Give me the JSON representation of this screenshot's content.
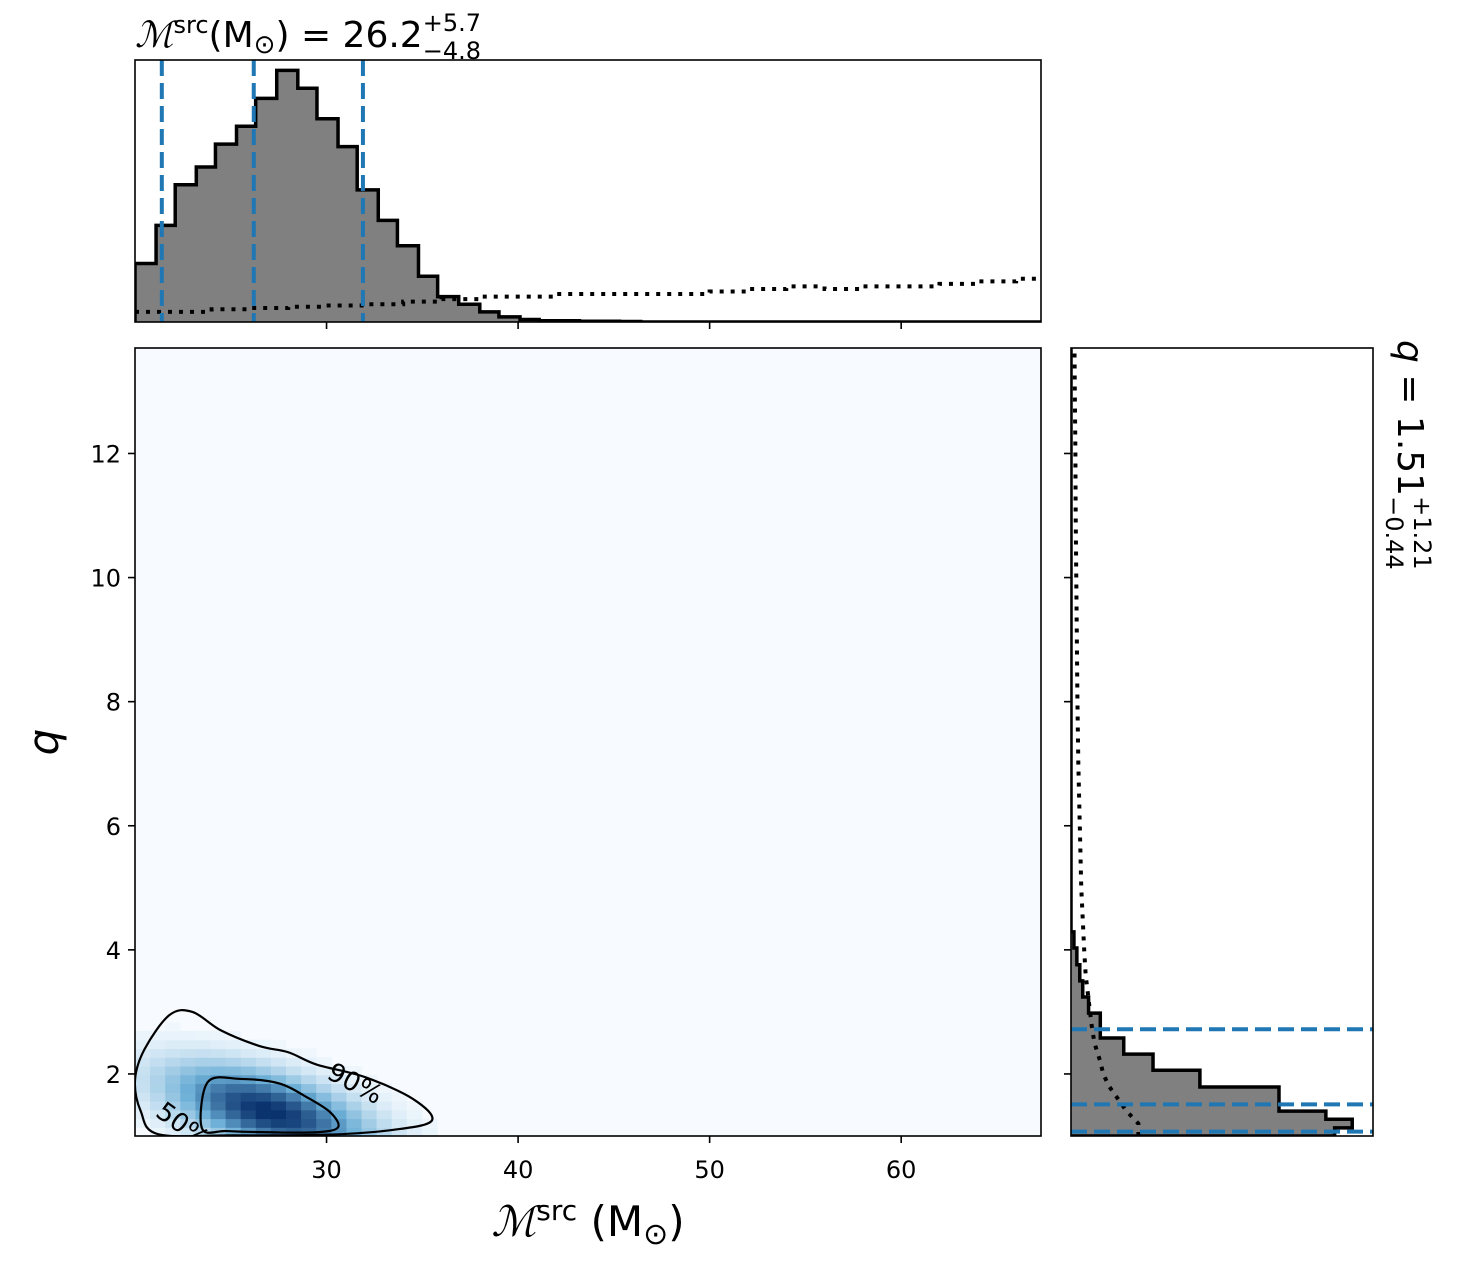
{
  "chart_data": {
    "type": "corner",
    "colors": {
      "hist_fill": "#808080",
      "hist_edge": "#000000",
      "quantile_line": "#1f77b4",
      "prior_line": "#000000",
      "density_cmap_low": "#f7fbff",
      "density_cmap_high": "#08306b"
    },
    "parameters": {
      "mchirp": {
        "label_symbol": "ℳ",
        "label_sup": "src",
        "label_unit": " (M",
        "label_unit_sub": "⊙",
        "label_unit_close": ")",
        "range": [
          20,
          67.3
        ],
        "ticks": [
          30,
          40,
          50,
          60
        ],
        "tick_labels": [
          "30",
          "40",
          "50",
          "60"
        ],
        "median": 26.2,
        "plus": "+5.7",
        "minus": "−4.8",
        "quantiles": [
          21.4,
          26.2,
          31.9
        ],
        "title_prefix": "(M",
        "title_eq": ") = 26.2"
      },
      "q": {
        "label_symbol": "q",
        "range": [
          1,
          13.7
        ],
        "ticks": [
          2,
          4,
          6,
          8,
          10,
          12
        ],
        "tick_labels": [
          "2",
          "4",
          "6",
          "8",
          "10",
          "12"
        ],
        "median": 1.51,
        "plus": "+1.21",
        "minus": "−0.44",
        "quantiles": [
          1.07,
          1.51,
          2.72
        ],
        "title_eq": " = 1.51"
      }
    },
    "mchirp_hist": {
      "bin_edges": [
        20,
        21.1,
        22.1,
        23.2,
        24.2,
        25.3,
        26.3,
        27.4,
        28.5,
        29.5,
        30.6,
        31.6,
        32.7,
        33.7,
        34.8,
        35.8,
        36.9,
        38.0,
        39.0,
        40.1,
        41.1,
        42.2,
        43.2,
        44.3,
        45.3,
        46.4
      ],
      "density": [
        0.23,
        0.38,
        0.54,
        0.61,
        0.7,
        0.77,
        0.88,
        0.99,
        0.92,
        0.8,
        0.69,
        0.52,
        0.4,
        0.3,
        0.18,
        0.1,
        0.07,
        0.04,
        0.02,
        0.01,
        0.005,
        0.005,
        0.003,
        0.003,
        0.002
      ],
      "prior": [
        [
          20,
          0.04
        ],
        [
          22,
          0.04
        ],
        [
          24,
          0.05
        ],
        [
          26,
          0.055
        ],
        [
          28,
          0.06
        ],
        [
          30,
          0.065
        ],
        [
          32,
          0.07
        ],
        [
          34,
          0.08
        ],
        [
          36,
          0.09
        ],
        [
          38,
          0.1
        ],
        [
          40,
          0.1
        ],
        [
          42,
          0.11
        ],
        [
          44,
          0.11
        ],
        [
          46,
          0.11
        ],
        [
          48,
          0.11
        ],
        [
          50,
          0.12
        ],
        [
          52,
          0.13
        ],
        [
          54,
          0.14
        ],
        [
          56,
          0.13
        ],
        [
          58,
          0.14
        ],
        [
          60,
          0.14
        ],
        [
          62,
          0.15
        ],
        [
          64,
          0.16
        ],
        [
          66,
          0.17
        ],
        [
          67.3,
          0.17
        ]
      ]
    },
    "q_hist": {
      "bin_edges": [
        1.0,
        1.13,
        1.27,
        1.4,
        1.53,
        1.66,
        1.79,
        1.92,
        2.06,
        2.19,
        2.32,
        2.45,
        2.58,
        2.71,
        2.84,
        2.98,
        3.11,
        3.24,
        3.37,
        3.5,
        3.63,
        3.76,
        3.9,
        4.03,
        4.16,
        4.29
      ],
      "density": [
        0.9,
        0.96,
        0.87,
        0.71,
        0.71,
        0.71,
        0.44,
        0.44,
        0.28,
        0.28,
        0.18,
        0.18,
        0.1,
        0.1,
        0.1,
        0.06,
        0.06,
        0.04,
        0.04,
        0.03,
        0.03,
        0.02,
        0.02,
        0.01,
        0.01
      ],
      "prior": [
        [
          1.0,
          0.23
        ],
        [
          1.2,
          0.23
        ],
        [
          1.4,
          0.19
        ],
        [
          1.6,
          0.16
        ],
        [
          1.8,
          0.13
        ],
        [
          2.0,
          0.11
        ],
        [
          2.2,
          0.1
        ],
        [
          2.5,
          0.08
        ],
        [
          2.8,
          0.07
        ],
        [
          3.2,
          0.06
        ],
        [
          3.6,
          0.05
        ],
        [
          4.0,
          0.045
        ],
        [
          5.0,
          0.035
        ],
        [
          6.0,
          0.03
        ],
        [
          7.0,
          0.025
        ],
        [
          8.0,
          0.022
        ],
        [
          9.0,
          0.02
        ],
        [
          10.0,
          0.018
        ],
        [
          11.0,
          0.016
        ],
        [
          12.0,
          0.015
        ],
        [
          13.0,
          0.013
        ],
        [
          13.7,
          0.012
        ]
      ]
    },
    "density2d": {
      "center": [
        27.0,
        1.4
      ],
      "spread": [
        3.2,
        0.45
      ],
      "tilt": -0.55
    },
    "contours": [
      {
        "label": "50%",
        "points": [
          [
            23.8,
            1.87
          ],
          [
            25.5,
            1.92
          ],
          [
            27.5,
            1.85
          ],
          [
            29.0,
            1.62
          ],
          [
            30.2,
            1.38
          ],
          [
            30.6,
            1.14
          ],
          [
            29.5,
            1.06
          ],
          [
            27.0,
            1.06
          ],
          [
            24.8,
            1.08
          ],
          [
            23.5,
            1.12
          ]
        ],
        "label_pos": [
          22.5,
          1.18
        ],
        "label_rotation": 36
      },
      {
        "label": "90%",
        "points": [
          [
            20.5,
            2.4
          ],
          [
            21.8,
            2.95
          ],
          [
            23.0,
            3.0
          ],
          [
            24.5,
            2.7
          ],
          [
            26.5,
            2.45
          ],
          [
            28.0,
            2.35
          ],
          [
            29.5,
            2.15
          ],
          [
            32.0,
            1.95
          ],
          [
            34.5,
            1.6
          ],
          [
            35.5,
            1.25
          ],
          [
            33.5,
            1.1
          ],
          [
            30.0,
            1.02
          ],
          [
            25.0,
            1.01
          ],
          [
            21.2,
            1.03
          ],
          [
            20.3,
            1.4
          ],
          [
            20.0,
            1.9
          ]
        ],
        "label_pos": [
          31.5,
          1.85
        ],
        "label_rotation": 28
      }
    ]
  }
}
